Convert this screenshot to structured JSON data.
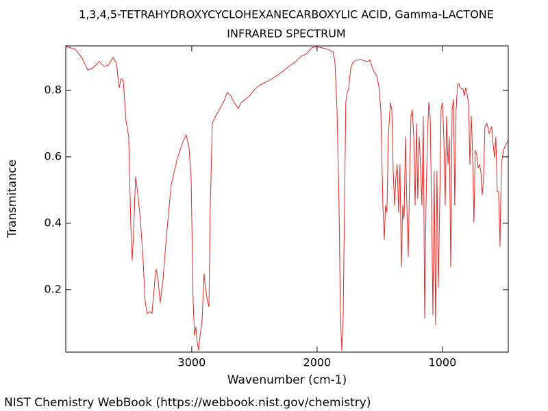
{
  "chart_data": {
    "type": "line",
    "title": "1,3,4,5-TETRAHYDROXYCYCLOHEXANECARBOXYLIC ACID, Gamma-LACTONE",
    "subtitle": "INFRARED SPECTRUM",
    "x_label": "Wavenumber (cm-1)",
    "y_label": "Transmitance",
    "footer": "NIST Chemistry WebBook (https://webbook.nist.gov/chemistry)",
    "color": "#e8241f",
    "xlim": [
      4005,
      475
    ],
    "ylim": [
      0.012,
      0.934
    ],
    "xticks": [
      3000,
      2000,
      1000
    ],
    "yticks": [
      0.2,
      0.4,
      0.6,
      0.8
    ],
    "x": [
      4000,
      3929,
      3874,
      3831,
      3792,
      3738,
      3699,
      3666,
      3628,
      3601,
      3579,
      3563,
      3546,
      3525,
      3503,
      3486,
      3475,
      3464,
      3448,
      3432,
      3410,
      3388,
      3372,
      3355,
      3333,
      3317,
      3295,
      3284,
      3268,
      3252,
      3230,
      3202,
      3164,
      3120,
      3077,
      3044,
      3022,
      3005,
      2989,
      2978,
      2967,
      2956,
      2945,
      2934,
      2918,
      2902,
      2891,
      2874,
      2863,
      2852,
      2836,
      2809,
      2781,
      2749,
      2716,
      2689,
      2661,
      2628,
      2607,
      2574,
      2536,
      2497,
      2454,
      2388,
      2317,
      2246,
      2169,
      2126,
      2082,
      2044,
      2006,
      1962,
      1918,
      1874,
      1858,
      1841,
      1825,
      1814,
      1803,
      1792,
      1781,
      1771,
      1760,
      1749,
      1732,
      1716,
      1689,
      1650,
      1607,
      1579,
      1557,
      1546,
      1525,
      1508,
      1492,
      1475,
      1464,
      1454,
      1443,
      1432,
      1415,
      1404,
      1393,
      1382,
      1372,
      1361,
      1350,
      1339,
      1328,
      1317,
      1306,
      1295,
      1284,
      1273,
      1262,
      1251,
      1240,
      1229,
      1218,
      1207,
      1197,
      1186,
      1175,
      1164,
      1153,
      1142,
      1131,
      1120,
      1109,
      1098,
      1087,
      1076,
      1066,
      1055,
      1044,
      1033,
      1022,
      1011,
      1000,
      989,
      978,
      967,
      956,
      945,
      934,
      923,
      912,
      902,
      891,
      880,
      869,
      858,
      836,
      825,
      814,
      792,
      781,
      770,
      760,
      749,
      738,
      727,
      716,
      705,
      694,
      683,
      672,
      661,
      645,
      628,
      607,
      596,
      585,
      574,
      563,
      552,
      541,
      530,
      514,
      497,
      475
    ],
    "values": [
      0.932,
      0.924,
      0.897,
      0.862,
      0.866,
      0.887,
      0.872,
      0.876,
      0.899,
      0.883,
      0.808,
      0.835,
      0.829,
      0.711,
      0.66,
      0.392,
      0.289,
      0.371,
      0.54,
      0.495,
      0.412,
      0.289,
      0.165,
      0.128,
      0.134,
      0.128,
      0.227,
      0.262,
      0.227,
      0.161,
      0.227,
      0.361,
      0.515,
      0.588,
      0.639,
      0.666,
      0.629,
      0.536,
      0.165,
      0.062,
      0.087,
      0.041,
      0.017,
      0.062,
      0.103,
      0.248,
      0.206,
      0.165,
      0.149,
      0.454,
      0.701,
      0.722,
      0.742,
      0.763,
      0.794,
      0.784,
      0.763,
      0.746,
      0.763,
      0.773,
      0.784,
      0.804,
      0.817,
      0.829,
      0.845,
      0.866,
      0.887,
      0.903,
      0.911,
      0.928,
      0.932,
      0.928,
      0.924,
      0.916,
      0.887,
      0.742,
      0.454,
      0.124,
      0.017,
      0.124,
      0.454,
      0.763,
      0.794,
      0.804,
      0.866,
      0.883,
      0.891,
      0.893,
      0.887,
      0.891,
      0.866,
      0.856,
      0.845,
      0.815,
      0.742,
      0.454,
      0.351,
      0.454,
      0.433,
      0.66,
      0.763,
      0.742,
      0.557,
      0.454,
      0.536,
      0.577,
      0.433,
      0.577,
      0.268,
      0.454,
      0.412,
      0.66,
      0.454,
      0.299,
      0.536,
      0.722,
      0.742,
      0.66,
      0.454,
      0.701,
      0.474,
      0.66,
      0.577,
      0.454,
      0.722,
      0.114,
      0.454,
      0.66,
      0.763,
      0.722,
      0.454,
      0.124,
      0.557,
      0.093,
      0.557,
      0.206,
      0.454,
      0.742,
      0.763,
      0.66,
      0.454,
      0.722,
      0.577,
      0.66,
      0.268,
      0.742,
      0.773,
      0.454,
      0.742,
      0.815,
      0.821,
      0.808,
      0.804,
      0.784,
      0.808,
      0.763,
      0.577,
      0.722,
      0.619,
      0.402,
      0.619,
      0.608,
      0.567,
      0.577,
      0.557,
      0.485,
      0.536,
      0.691,
      0.701,
      0.67,
      0.691,
      0.639,
      0.598,
      0.66,
      0.495,
      0.495,
      0.33,
      0.577,
      0.619,
      0.635,
      0.65
    ]
  }
}
